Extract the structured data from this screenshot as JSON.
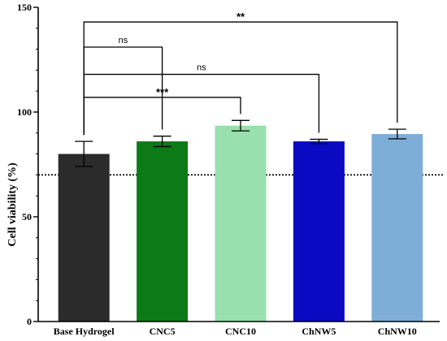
{
  "chart_data": {
    "type": "bar",
    "title": "",
    "xlabel": "",
    "ylabel": "Cell viability (%)",
    "ylim": [
      0,
      150
    ],
    "yticks": [
      0,
      50,
      100,
      150
    ],
    "categories": [
      "Base Hydrogel",
      "CNC5",
      "CNC10",
      "ChNW5",
      "ChNW10"
    ],
    "values": [
      80,
      86,
      93.5,
      86,
      89.5
    ],
    "errors": [
      6,
      2.5,
      2.5,
      1,
      2.3
    ],
    "colors": [
      "#2b2b2b",
      "#0c7a17",
      "#98e0ad",
      "#0a0ac2",
      "#7eaed8"
    ],
    "reference_line": 70,
    "comparisons": [
      {
        "from": "Base Hydrogel",
        "to": "CNC5",
        "label": "ns"
      },
      {
        "from": "Base Hydrogel",
        "to": "CNC10",
        "label": "***"
      },
      {
        "from": "Base Hydrogel",
        "to": "ChNW5",
        "label": "ns"
      },
      {
        "from": "Base Hydrogel",
        "to": "ChNW10",
        "label": "**"
      }
    ]
  }
}
